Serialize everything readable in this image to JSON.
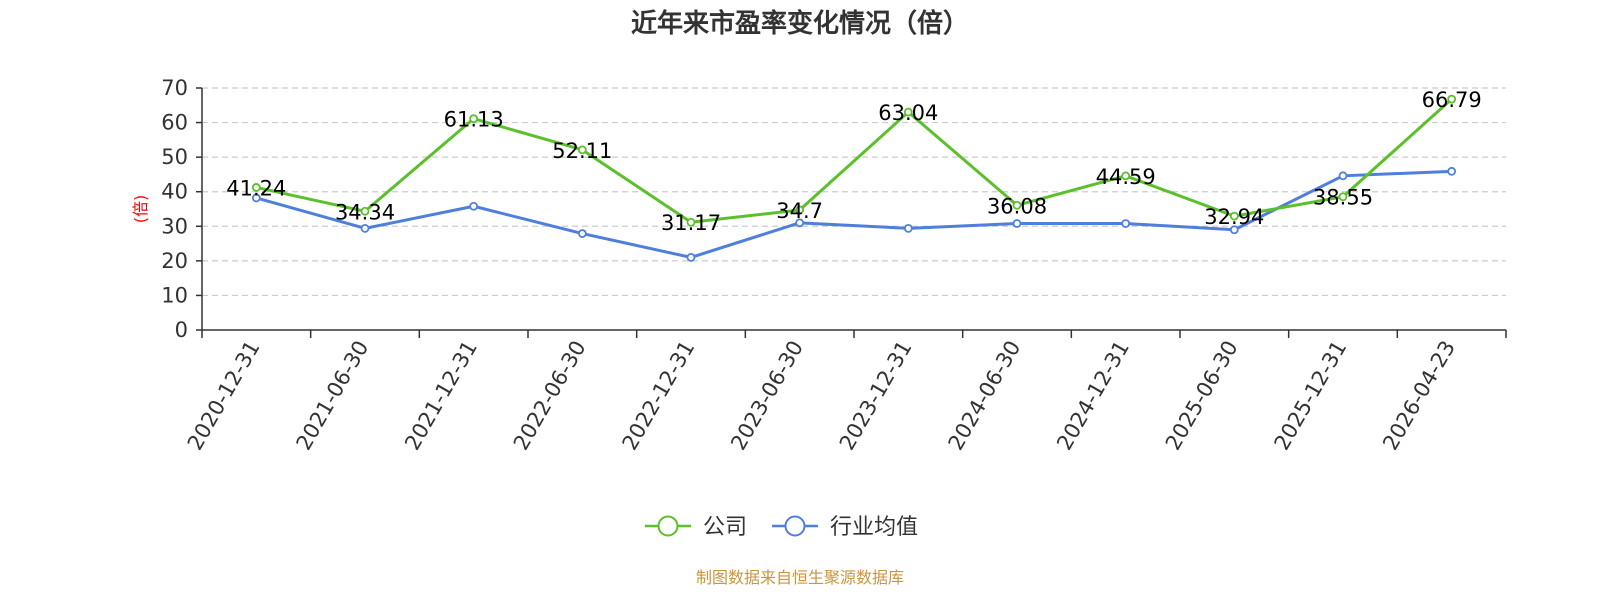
{
  "chart_data": {
    "type": "line",
    "title": "近年来市盈率变化情况（倍）",
    "ylabel": "(倍)",
    "ylim": [
      0,
      70
    ],
    "yticks": [
      0,
      10,
      20,
      30,
      40,
      50,
      60,
      70
    ],
    "grid": true,
    "legend_position": "bottom-center",
    "categories": [
      "2020-12-31",
      "2021-06-30",
      "2021-12-31",
      "2022-06-30",
      "2022-12-31",
      "2023-06-30",
      "2023-12-31",
      "2024-06-30",
      "2024-12-31",
      "2025-06-30",
      "2025-12-31",
      "2026-04-23"
    ],
    "series": [
      {
        "name": "公司",
        "color": "#5bc02b",
        "values": [
          41.24,
          34.34,
          61.13,
          52.11,
          31.17,
          34.7,
          63.04,
          36.08,
          44.59,
          32.94,
          38.55,
          66.79
        ],
        "labels": [
          "41.24",
          "34.34",
          "61.13",
          "52.11",
          "31.17",
          "34.7",
          "63.04",
          "36.08",
          "44.59",
          "32.94",
          "38.55",
          "66.79"
        ]
      },
      {
        "name": "行业均值",
        "color": "#4f7fdc",
        "values": [
          38.2,
          29.4,
          35.8,
          27.9,
          21.0,
          31.0,
          29.4,
          30.8,
          30.8,
          29.0,
          44.6,
          45.9
        ]
      }
    ],
    "ylabel_color": "#ff0000",
    "source": "制图数据来自恒生聚源数据库",
    "source_color": "#c8963c"
  }
}
